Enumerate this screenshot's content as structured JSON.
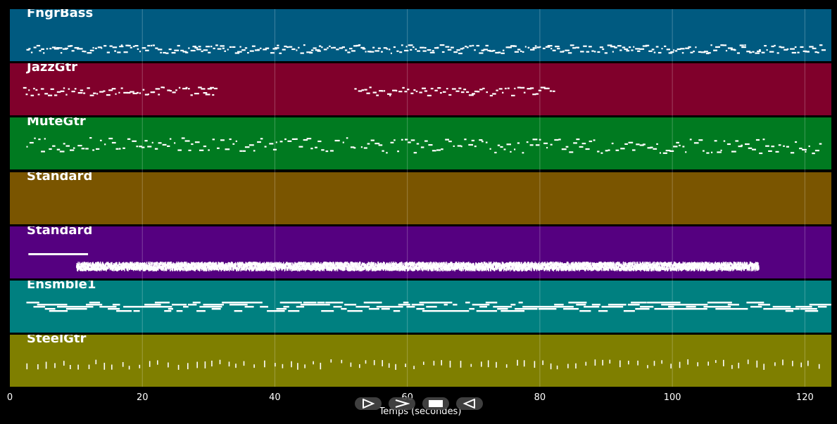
{
  "chart_data": {
    "type": "piano-roll",
    "xlabel": "Temps (secondes)",
    "xlim": [
      0,
      124
    ],
    "xticks": [
      0,
      20,
      40,
      60,
      80,
      100,
      120
    ],
    "tracks": [
      {
        "name": "FngrBass",
        "color": "#005a80"
      },
      {
        "name": "JazzGtr",
        "color": "#80002b"
      },
      {
        "name": "MuteGtr",
        "color": "#007a20"
      },
      {
        "name": "Standard",
        "color": "#7a5500"
      },
      {
        "name": "Standard",
        "color": "#550080"
      },
      {
        "name": "Ensmble1",
        "color": "#008080"
      },
      {
        "name": "SteelGtr",
        "color": "#7f7f00"
      }
    ]
  },
  "controls": {
    "play_icon": "play-outline-icon",
    "forward_icon": "fast-forward-icon",
    "stop_icon": "stop-icon",
    "rewind_icon": "rewind-icon"
  }
}
